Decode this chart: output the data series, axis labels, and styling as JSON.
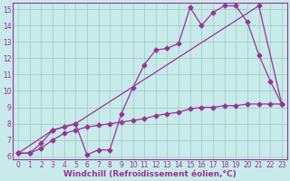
{
  "bg_color": "#c8eaea",
  "line_color": "#993399",
  "grid_color": "#99ccbb",
  "xlabel": "Windchill (Refroidissement éolien,°C)",
  "xlabel_fontsize": 6.5,
  "tick_fontsize": 5.5,
  "xlim": [
    -0.5,
    23.5
  ],
  "ylim": [
    5.8,
    15.4
  ],
  "yticks": [
    6,
    7,
    8,
    9,
    10,
    11,
    12,
    13,
    14,
    15
  ],
  "xticks": [
    0,
    1,
    2,
    3,
    4,
    5,
    6,
    7,
    8,
    9,
    10,
    11,
    12,
    13,
    14,
    15,
    16,
    17,
    18,
    19,
    20,
    21,
    22,
    23
  ],
  "line1_x": [
    0,
    3,
    5,
    21,
    23
  ],
  "line1_y": [
    6.2,
    7.6,
    8.0,
    15.2,
    9.2
  ],
  "line2_x": [
    0,
    1,
    2,
    3,
    4,
    5,
    6,
    7,
    8,
    9,
    10,
    11,
    12,
    13,
    14,
    15,
    16,
    17,
    18,
    19,
    20,
    21,
    22,
    23
  ],
  "line2_y": [
    6.2,
    6.2,
    6.8,
    7.6,
    7.8,
    8.0,
    6.1,
    6.4,
    6.4,
    8.6,
    10.2,
    11.6,
    12.5,
    12.6,
    12.9,
    15.1,
    14.0,
    14.8,
    15.2,
    15.2,
    14.2,
    12.2,
    10.6,
    9.2
  ],
  "line3_x": [
    0,
    1,
    2,
    3,
    4,
    5,
    6,
    7,
    8,
    9,
    10,
    11,
    12,
    13,
    14,
    15,
    16,
    17,
    18,
    19,
    20,
    21,
    22,
    23
  ],
  "line3_y": [
    6.2,
    6.2,
    6.5,
    7.0,
    7.4,
    7.6,
    7.8,
    7.9,
    8.0,
    8.1,
    8.2,
    8.3,
    8.5,
    8.6,
    8.7,
    8.9,
    9.0,
    9.0,
    9.1,
    9.1,
    9.2,
    9.2,
    9.2,
    9.2
  ]
}
